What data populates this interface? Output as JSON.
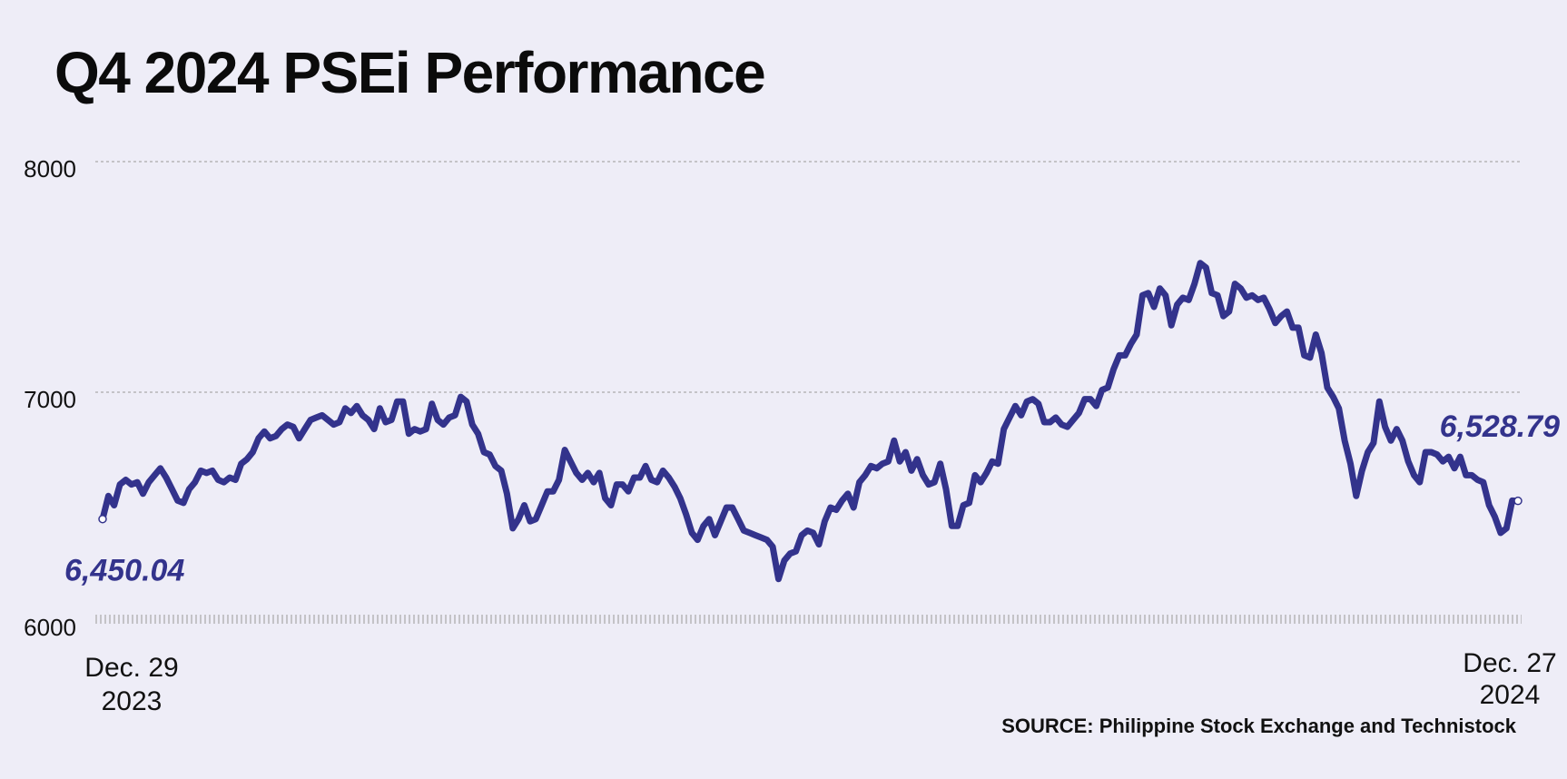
{
  "chart_data": {
    "type": "line",
    "title": "Q4 2024 PSEi Performance",
    "source": "SOURCE: Philippine Stock Exchange and Technistock",
    "ylim": [
      6000,
      8000
    ],
    "y_ticks": [
      {
        "value": 8000,
        "label": "8000"
      },
      {
        "value": 7000,
        "label": "7000"
      },
      {
        "value": 6000,
        "label": "6000"
      }
    ],
    "grid": "horizontal dotted",
    "x_labels": {
      "start": {
        "line1": "Dec. 29",
        "line2": "2023"
      },
      "end": {
        "line1": "Dec. 27",
        "line2": "2024"
      }
    },
    "annotations": {
      "start_value": "6,450.04",
      "end_value": "6,528.79"
    },
    "colors": {
      "line": "#33338c",
      "background": "#eeedf7",
      "grid": "#aaaaaa"
    },
    "series": [
      {
        "values": [
          6450.04,
          6550,
          6510,
          6600,
          6620,
          6600,
          6610,
          6560,
          6610,
          6640,
          6670,
          6630,
          6580,
          6530,
          6520,
          6580,
          6610,
          6660,
          6650,
          6660,
          6620,
          6610,
          6630,
          6620,
          6690,
          6710,
          6740,
          6800,
          6830,
          6800,
          6810,
          6840,
          6860,
          6850,
          6800,
          6840,
          6880,
          6890,
          6900,
          6880,
          6860,
          6870,
          6930,
          6910,
          6940,
          6900,
          6880,
          6840,
          6930,
          6870,
          6880,
          6960,
          6960,
          6820,
          6840,
          6830,
          6840,
          6950,
          6880,
          6860,
          6890,
          6900,
          6980,
          6960,
          6860,
          6820,
          6740,
          6730,
          6680,
          6660,
          6560,
          6410,
          6450,
          6510,
          6440,
          6450,
          6510,
          6570,
          6570,
          6620,
          6750,
          6700,
          6650,
          6620,
          6650,
          6610,
          6650,
          6540,
          6510,
          6600,
          6600,
          6570,
          6630,
          6630,
          6680,
          6620,
          6610,
          6660,
          6630,
          6590,
          6540,
          6470,
          6390,
          6360,
          6420,
          6450,
          6380,
          6440,
          6500,
          6500,
          6450,
          6400,
          6390,
          6380,
          6370,
          6360,
          6330,
          6190,
          6270,
          6300,
          6310,
          6380,
          6400,
          6390,
          6340,
          6440,
          6500,
          6490,
          6530,
          6560,
          6500,
          6610,
          6640,
          6680,
          6670,
          6690,
          6700,
          6790,
          6700,
          6740,
          6660,
          6710,
          6640,
          6600,
          6610,
          6690,
          6580,
          6420,
          6420,
          6510,
          6520,
          6640,
          6610,
          6650,
          6700,
          6690,
          6840,
          6890,
          6940,
          6900,
          6960,
          6970,
          6950,
          6870,
          6870,
          6890,
          6860,
          6850,
          6880,
          6910,
          6970,
          6970,
          6940,
          7010,
          7020,
          7100,
          7160,
          7160,
          7210,
          7250,
          7420,
          7430,
          7370,
          7450,
          7420,
          7290,
          7380,
          7410,
          7400,
          7470,
          7560,
          7540,
          7430,
          7420,
          7330,
          7350,
          7470,
          7450,
          7410,
          7420,
          7400,
          7410,
          7360,
          7300,
          7330,
          7350,
          7280,
          7280,
          7160,
          7150,
          7250,
          7170,
          7020,
          6980,
          6930,
          6790,
          6690,
          6550,
          6660,
          6740,
          6780,
          6960,
          6850,
          6790,
          6840,
          6790,
          6700,
          6640,
          6610,
          6740,
          6740,
          6730,
          6700,
          6720,
          6670,
          6720,
          6640,
          6640,
          6620,
          6610,
          6510,
          6460,
          6390,
          6410,
          6530,
          6528.79
        ]
      }
    ]
  }
}
